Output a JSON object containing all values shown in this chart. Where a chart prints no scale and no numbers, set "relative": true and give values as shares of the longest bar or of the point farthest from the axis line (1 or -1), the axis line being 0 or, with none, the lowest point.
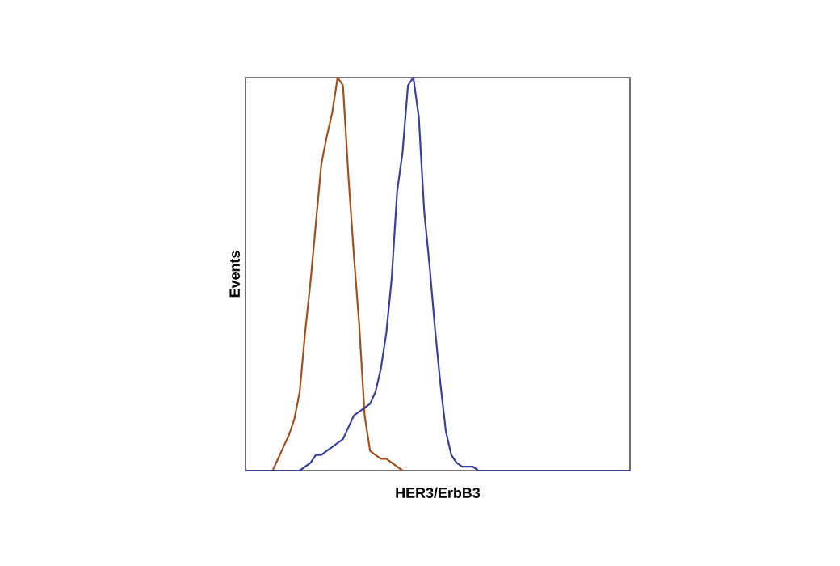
{
  "chart_data": {
    "type": "line",
    "relative": true,
    "xlabel": "HER3/ErbB3",
    "ylabel": "Events",
    "marker": "none",
    "line_style": "solid",
    "categories": [
      null,
      null,
      null,
      null,
      null,
      null,
      null,
      null,
      null,
      null,
      null,
      null,
      null,
      null,
      null,
      null,
      null,
      null,
      null,
      null,
      null,
      null,
      null,
      null,
      null,
      null,
      null,
      null,
      null,
      null,
      null,
      null,
      null,
      null,
      null,
      null,
      null,
      null,
      null,
      null,
      null,
      null,
      null,
      null,
      null,
      null,
      null,
      null,
      null,
      null,
      null,
      null,
      null,
      null,
      null,
      null,
      null,
      null,
      null,
      null,
      null,
      null,
      null,
      null,
      null,
      null,
      null,
      null,
      null,
      null,
      null,
      null
    ],
    "series": [
      {
        "color": "#a0521e",
        "values": [
          null,
          null,
          null,
          null,
          null,
          0,
          0.03,
          0.06,
          0.09,
          0.13,
          0.2,
          0.35,
          0.48,
          0.63,
          0.78,
          0.85,
          0.91,
          1,
          0.98,
          0.75,
          0.55,
          0.37,
          0.14,
          0.05,
          0.04,
          0.03,
          0.03,
          0.02,
          0.01,
          0,
          null,
          null,
          null,
          null,
          null,
          null,
          null,
          null,
          null,
          null,
          null,
          null,
          null,
          null,
          null,
          null,
          null,
          null,
          null,
          null,
          null,
          null,
          null,
          null,
          null,
          null,
          null,
          null,
          null,
          null,
          null,
          null,
          null,
          null,
          null,
          null,
          null,
          null,
          null,
          null,
          null,
          null
        ]
      },
      {
        "color": "#3a3f9a",
        "values": [
          0,
          0,
          0,
          0,
          0,
          0,
          0,
          0,
          0,
          0,
          0,
          0.01,
          0.02,
          0.04,
          0.04,
          0.05,
          0.06,
          0.07,
          0.08,
          0.11,
          0.14,
          0.15,
          0.16,
          0.17,
          0.2,
          0.26,
          0.35,
          0.49,
          0.71,
          0.81,
          0.98,
          1,
          0.9,
          0.66,
          0.52,
          0.36,
          0.22,
          0.1,
          0.04,
          0.02,
          0.01,
          0.01,
          0.01,
          0,
          0,
          0,
          0,
          0,
          0,
          0,
          0,
          0,
          0,
          0,
          0,
          0,
          0,
          0,
          0,
          0,
          0,
          0,
          0,
          0,
          0,
          0,
          0,
          0,
          0,
          0,
          0,
          0
        ]
      }
    ]
  }
}
